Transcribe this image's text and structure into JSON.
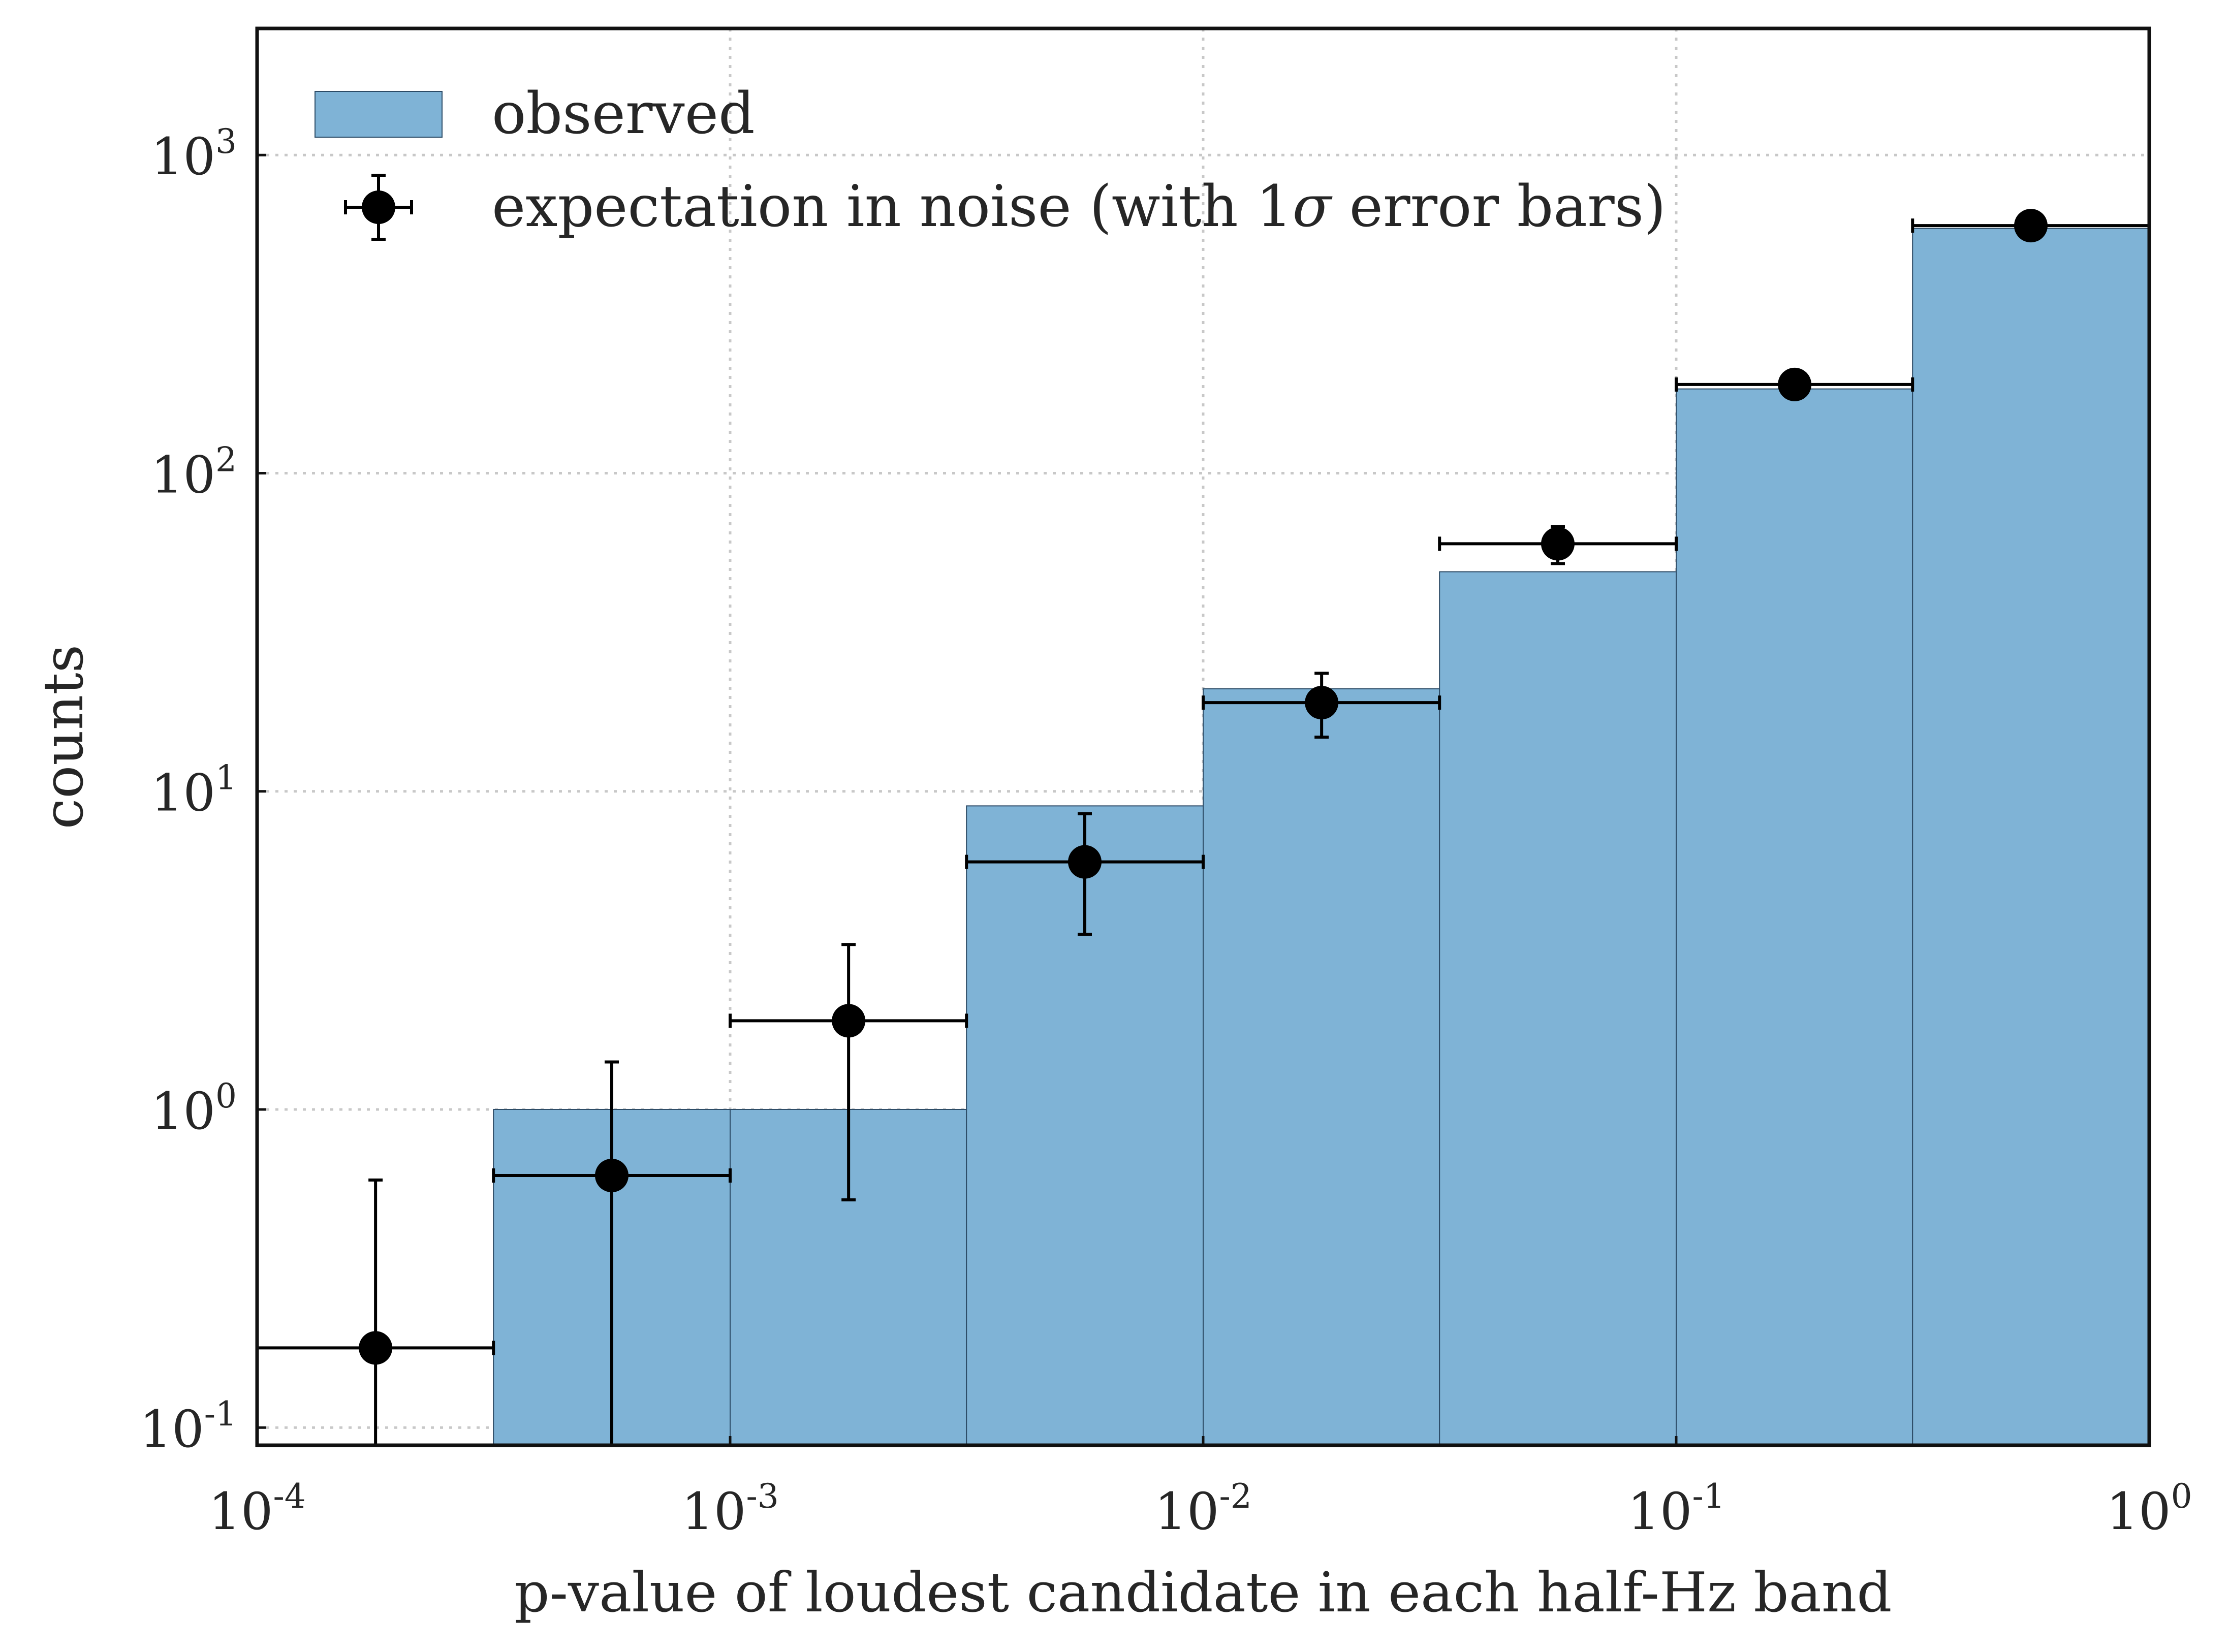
{
  "chart_data": {
    "type": "bar",
    "xlabel": "p-value of loudest candidate in each half-Hz band",
    "ylabel": "counts",
    "x_scale": "log",
    "y_scale": "log",
    "xlim": [
      0.0001,
      1
    ],
    "ylim": [
      0.088,
      2500
    ],
    "grid": true,
    "legend_position": "top-left",
    "x_ticks": [
      {
        "value": 0.0001,
        "base": "10",
        "exp": "-4"
      },
      {
        "value": 0.001,
        "base": "10",
        "exp": "-3"
      },
      {
        "value": 0.01,
        "base": "10",
        "exp": "-2"
      },
      {
        "value": 0.1,
        "base": "10",
        "exp": "-1"
      },
      {
        "value": 1,
        "base": "10",
        "exp": "0"
      }
    ],
    "y_ticks": [
      {
        "value": 0.1,
        "base": "10",
        "exp": "-1"
      },
      {
        "value": 1,
        "base": "10",
        "exp": "0"
      },
      {
        "value": 10,
        "base": "10",
        "exp": "1"
      },
      {
        "value": 100,
        "base": "10",
        "exp": "2"
      },
      {
        "value": 1000,
        "base": "10",
        "exp": "3"
      }
    ],
    "bin_edges": [
      0.0001,
      0.000316,
      0.001,
      0.00316,
      0.01,
      0.0316,
      0.1,
      0.316,
      1
    ],
    "series": [
      {
        "name": "observed",
        "kind": "histogram",
        "color": "#7fb3d6",
        "edge_color": "#2c4b66",
        "values": [
          0,
          1,
          1,
          9,
          21,
          49,
          184,
          588
        ]
      },
      {
        "name": "expectation in noise (with 1σ error bars)",
        "kind": "errorbar",
        "color": "#000000",
        "points": [
          {
            "x": 0.000178,
            "y": 0.178,
            "yerr_low": 0.0,
            "yerr_high": 0.6
          },
          {
            "x": 0.000562,
            "y": 0.62,
            "yerr_low": 0.0,
            "yerr_high": 1.41
          },
          {
            "x": 0.00178,
            "y": 1.9,
            "yerr_low": 0.52,
            "yerr_high": 3.3
          },
          {
            "x": 0.00562,
            "y": 6.0,
            "yerr_low": 3.55,
            "yerr_high": 8.5
          },
          {
            "x": 0.0178,
            "y": 19.0,
            "yerr_low": 14.8,
            "yerr_high": 23.5
          },
          {
            "x": 0.0562,
            "y": 60.0,
            "yerr_low": 52.0,
            "yerr_high": 68.0
          },
          {
            "x": 0.178,
            "y": 190.0,
            "yerr_low": 176.0,
            "yerr_high": 204.0
          },
          {
            "x": 0.562,
            "y": 600.0,
            "yerr_low": 576.0,
            "yerr_high": 624.0
          }
        ]
      }
    ]
  },
  "legend": {
    "observed_label": "observed",
    "expectation_prefix": "expectation in noise (with 1",
    "expectation_sigma": "σ",
    "expectation_suffix": " error bars)"
  }
}
